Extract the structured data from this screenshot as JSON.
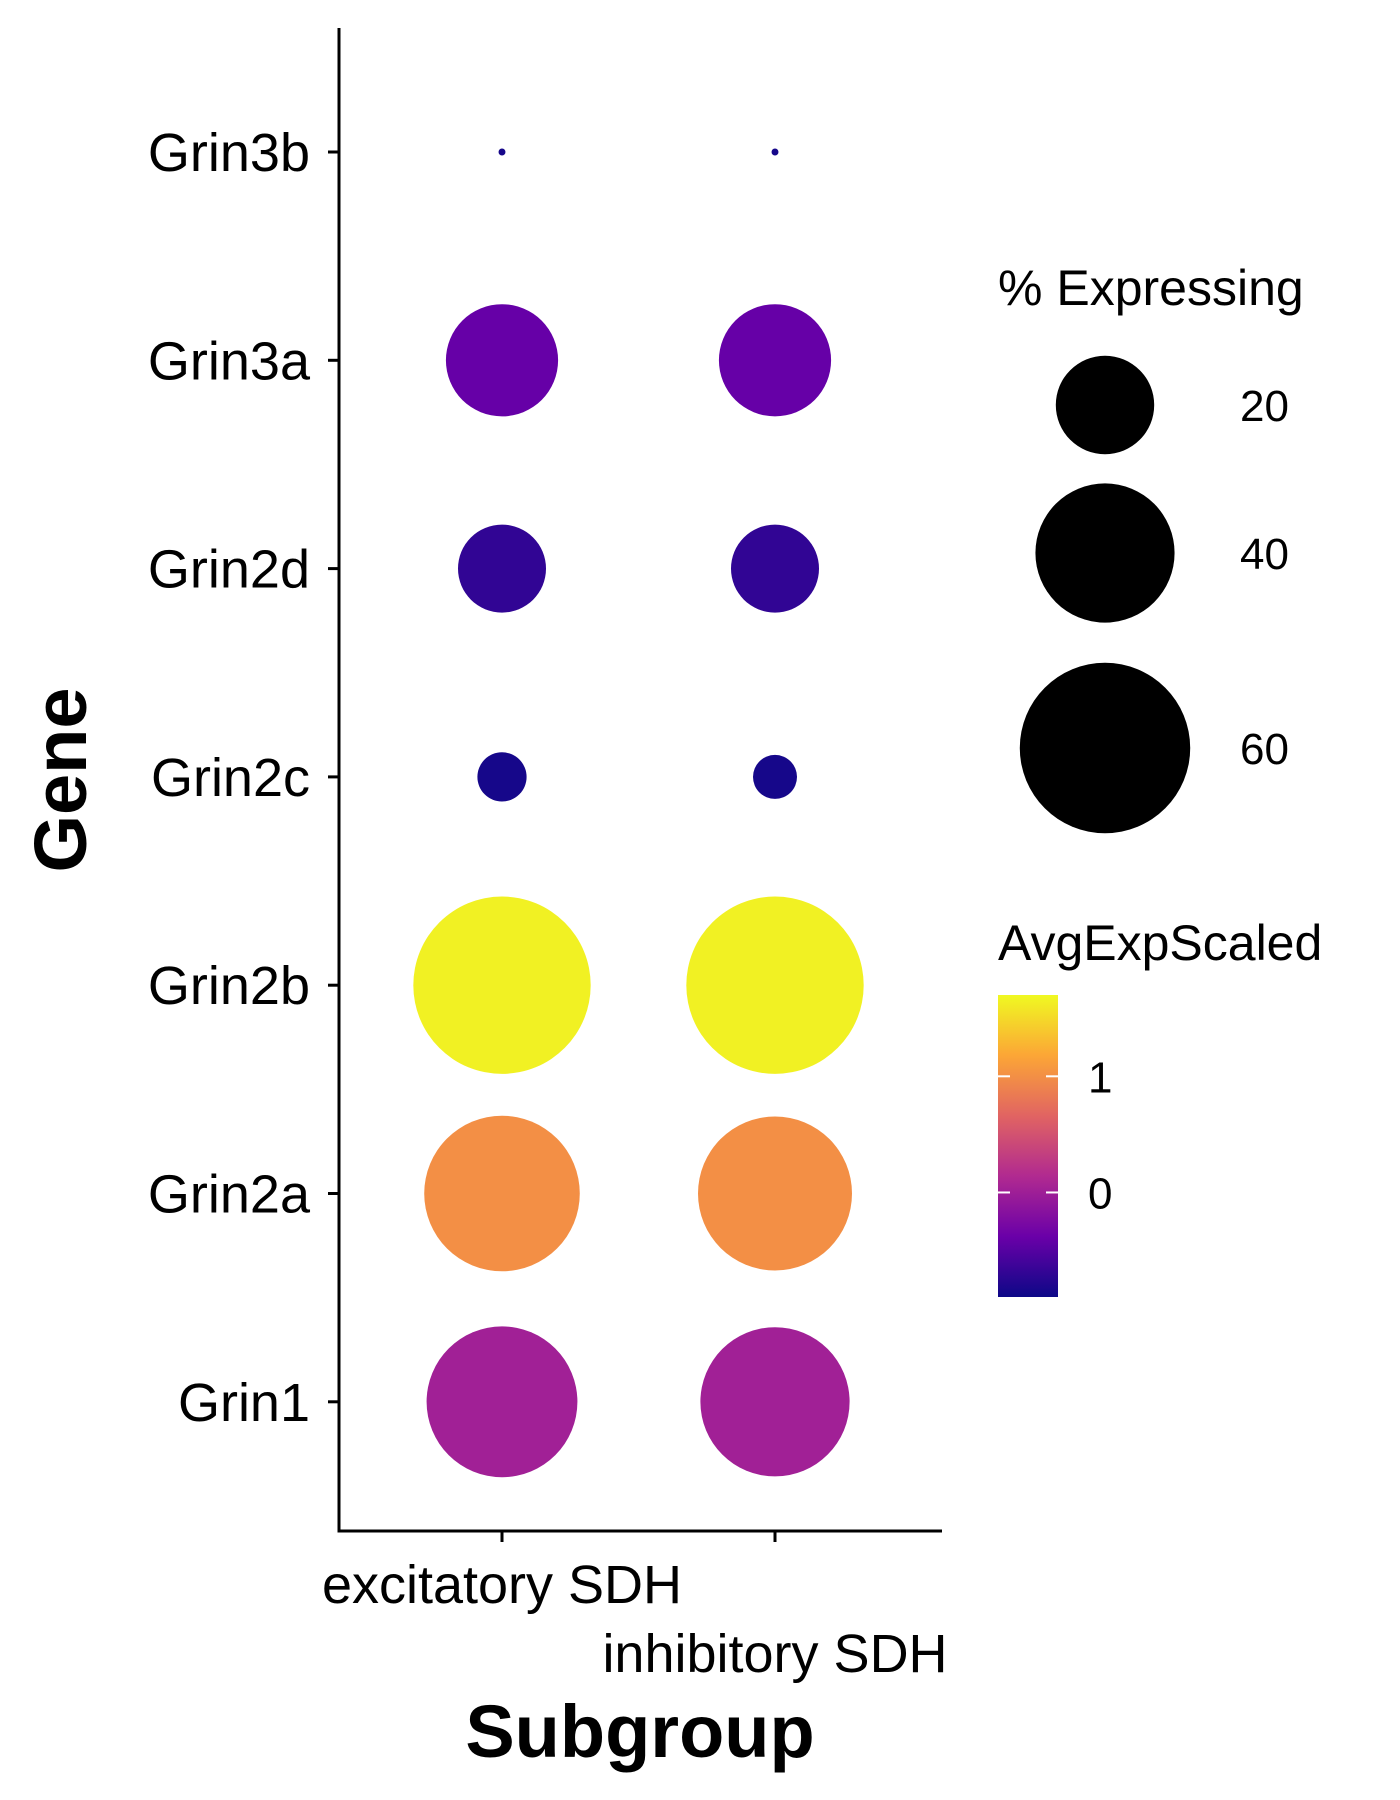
{
  "chart_data": {
    "type": "dot",
    "xlabel": "Subgroup",
    "ylabel": "Gene",
    "categories_x": [
      "excitatory SDH",
      "inhibitory SDH"
    ],
    "categories_y": [
      "Grin1",
      "Grin2a",
      "Grin2b",
      "Grin2c",
      "Grin2d",
      "Grin3a",
      "Grin3b"
    ],
    "points": [
      {
        "x": "excitatory SDH",
        "y": "Grin1",
        "pct_expressing": 47,
        "avg_exp_scaled": 0.02
      },
      {
        "x": "excitatory SDH",
        "y": "Grin2a",
        "pct_expressing": 50,
        "avg_exp_scaled": 1.0
      },
      {
        "x": "excitatory SDH",
        "y": "Grin2b",
        "pct_expressing": 65,
        "avg_exp_scaled": 1.65
      },
      {
        "x": "excitatory SDH",
        "y": "Grin2c",
        "pct_expressing": 5,
        "avg_exp_scaled": -0.85
      },
      {
        "x": "excitatory SDH",
        "y": "Grin2d",
        "pct_expressing": 16,
        "avg_exp_scaled": -0.7
      },
      {
        "x": "excitatory SDH",
        "y": "Grin3a",
        "pct_expressing": 26,
        "avg_exp_scaled": -0.4
      },
      {
        "x": "excitatory SDH",
        "y": "Grin3b",
        "pct_expressing": 0.1,
        "avg_exp_scaled": -0.85
      },
      {
        "x": "inhibitory SDH",
        "y": "Grin1",
        "pct_expressing": 46,
        "avg_exp_scaled": 0.02
      },
      {
        "x": "inhibitory SDH",
        "y": "Grin2a",
        "pct_expressing": 49,
        "avg_exp_scaled": 1.0
      },
      {
        "x": "inhibitory SDH",
        "y": "Grin2b",
        "pct_expressing": 65,
        "avg_exp_scaled": 1.65
      },
      {
        "x": "inhibitory SDH",
        "y": "Grin2c",
        "pct_expressing": 4,
        "avg_exp_scaled": -0.85
      },
      {
        "x": "inhibitory SDH",
        "y": "Grin2d",
        "pct_expressing": 16,
        "avg_exp_scaled": -0.7
      },
      {
        "x": "inhibitory SDH",
        "y": "Grin3a",
        "pct_expressing": 26,
        "avg_exp_scaled": -0.4
      },
      {
        "x": "inhibitory SDH",
        "y": "Grin3b",
        "pct_expressing": 0.1,
        "avg_exp_scaled": -0.85
      }
    ],
    "size_legend": {
      "title": "% Expressing",
      "breaks": [
        20,
        40,
        60
      ],
      "labels": [
        "20",
        "40",
        "60"
      ]
    },
    "color_legend": {
      "title": "AvgExpScaled",
      "range": [
        -0.9,
        1.7
      ],
      "breaks": [
        0,
        1
      ],
      "labels": [
        "0",
        "1"
      ],
      "colors": [
        "#0d0887",
        "#6a00a8",
        "#b12a90",
        "#e16462",
        "#fca636",
        "#f0f921"
      ]
    },
    "grid": false,
    "legend_position": "right"
  }
}
